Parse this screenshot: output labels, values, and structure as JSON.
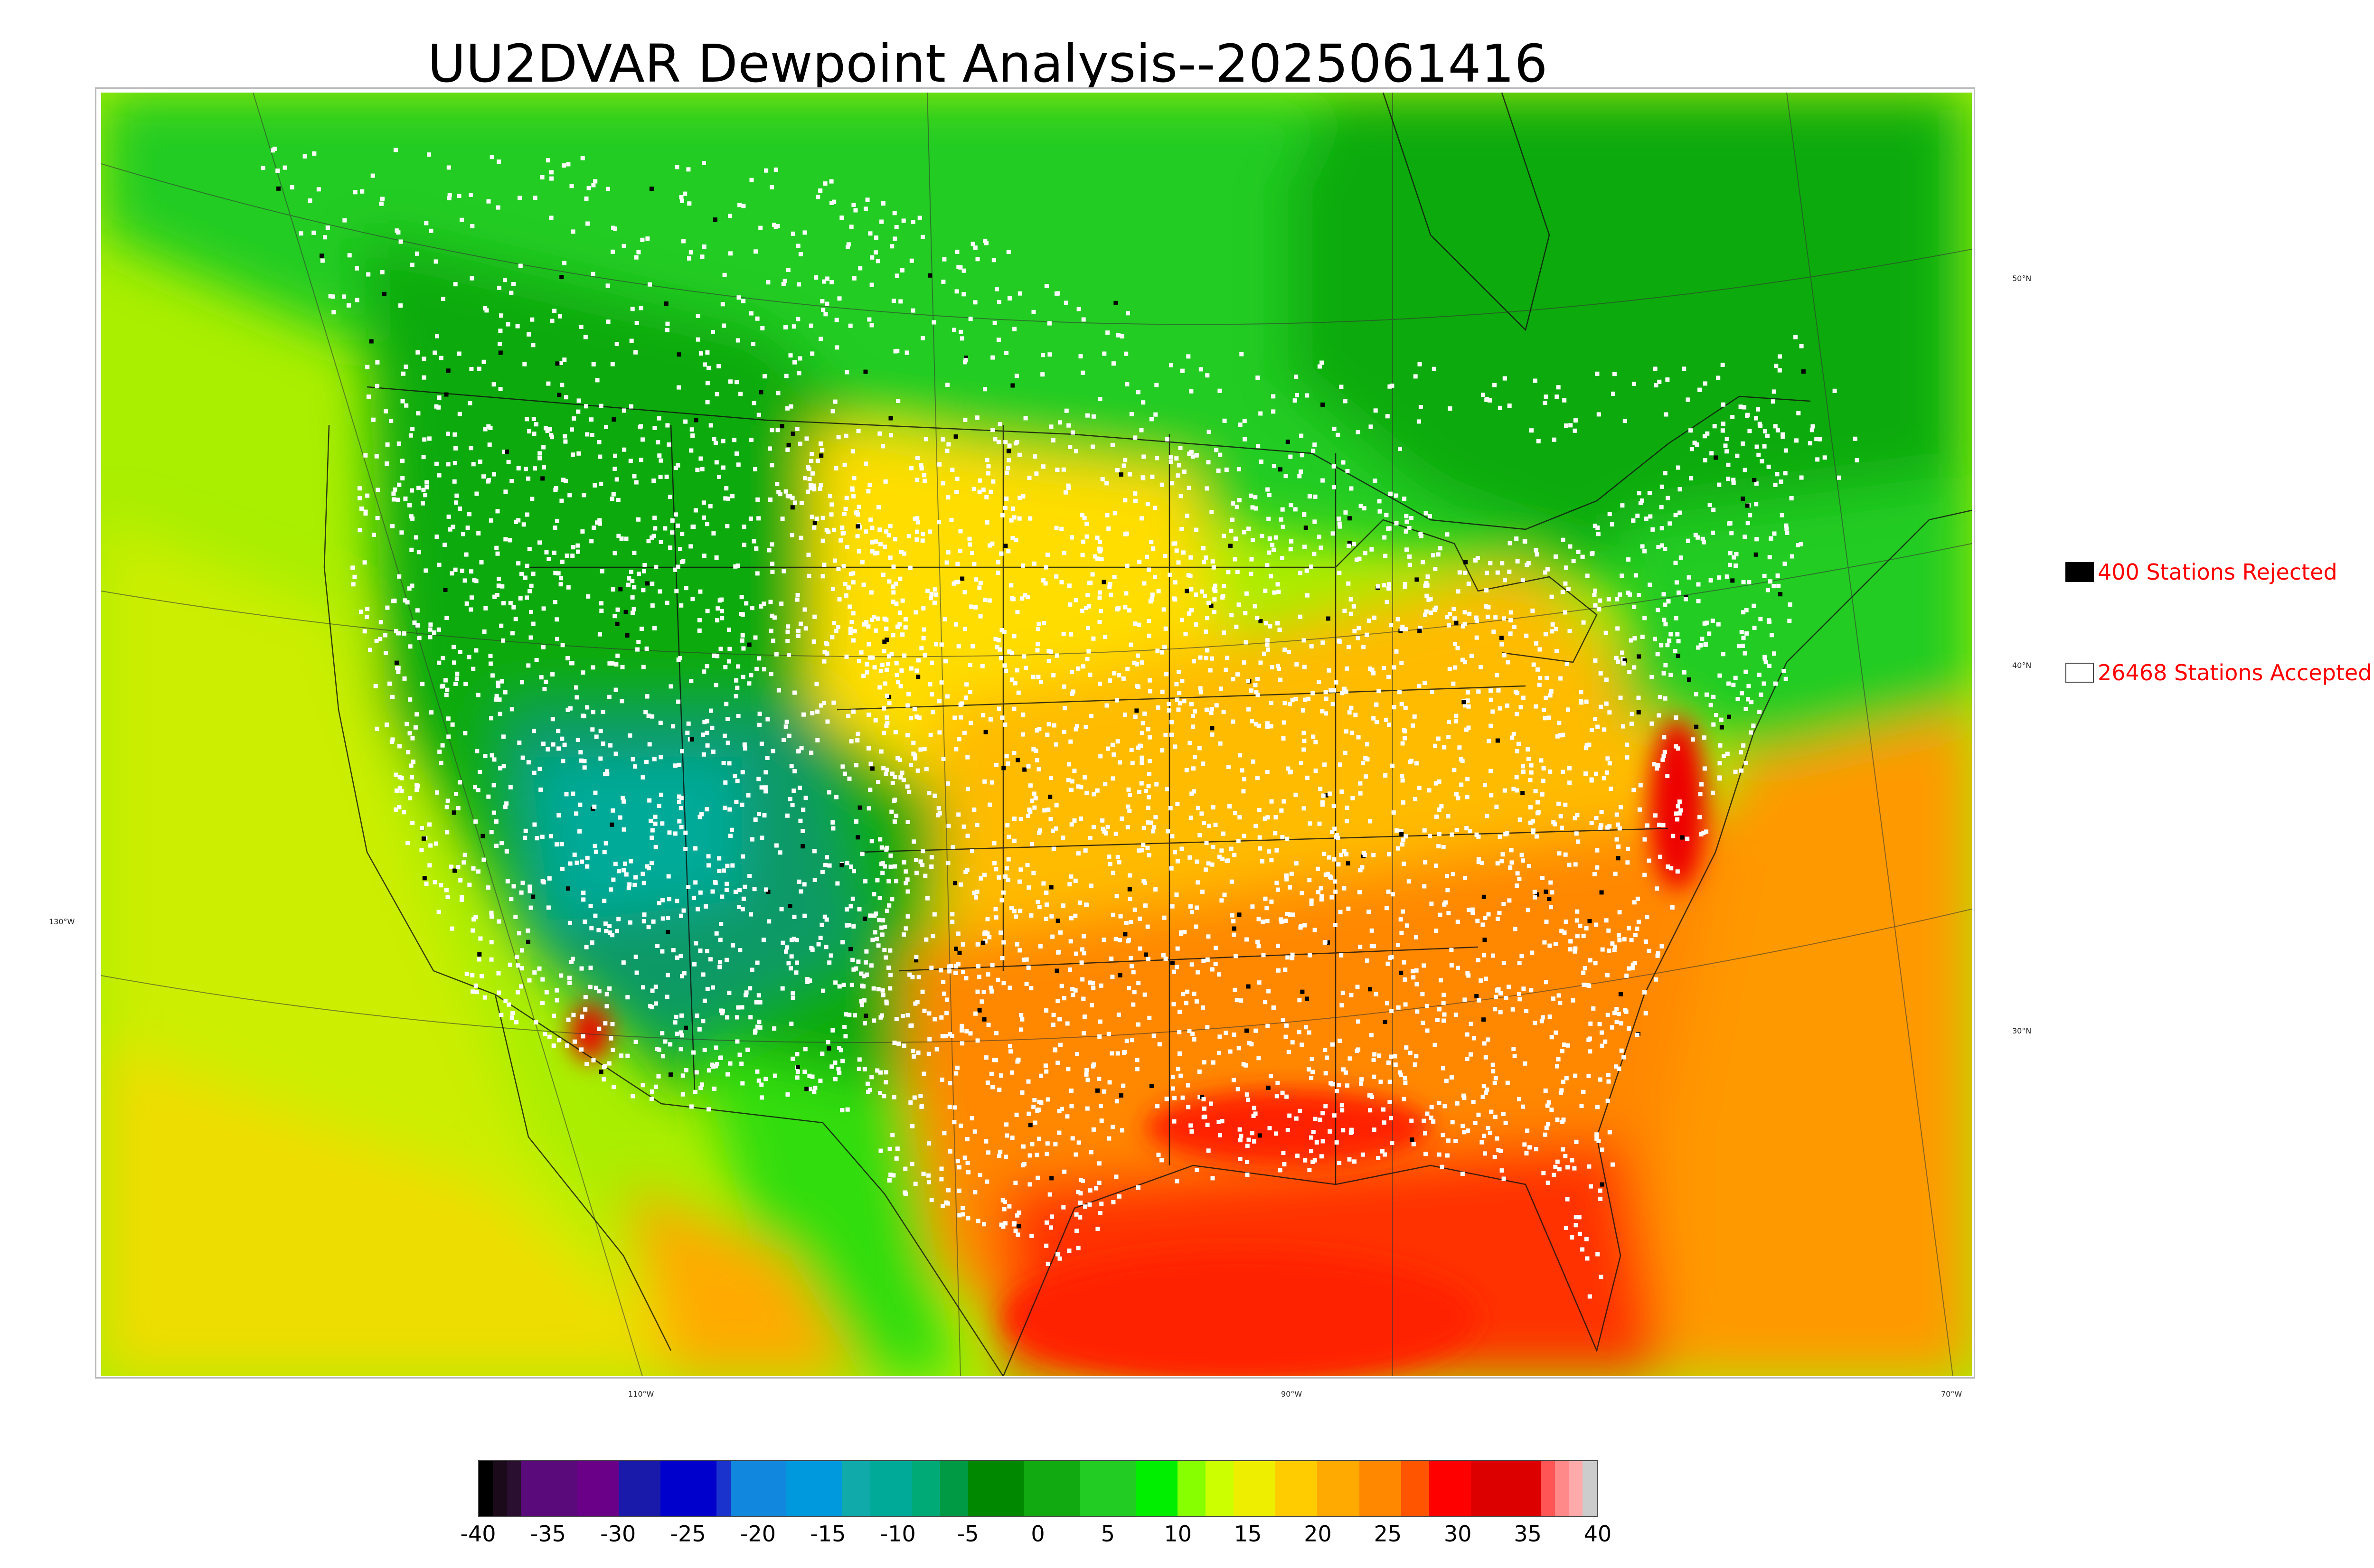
{
  "title": "UU2DVAR Dewpoint Analysis--2025061416",
  "map": {
    "projection": "Lambert conformal conic",
    "field": "Dewpoint",
    "longitude_labels": [
      "110°W",
      "90°W",
      "70°W"
    ],
    "latitude_labels": [
      "50°N",
      "40°N",
      "30°N"
    ],
    "left_longitude_label": "130°W",
    "station_colors": {
      "accepted": "#ffffff",
      "rejected": "#000000"
    }
  },
  "legend": {
    "rejected": {
      "label": "400 Stations Rejected",
      "count": 400,
      "swatch_color": "#000000"
    },
    "accepted": {
      "label": "26468 Stations Accepted",
      "count": 26468,
      "swatch_color": "#ffffff"
    }
  },
  "colorbar": {
    "min": -40,
    "max": 40,
    "tick_labels": [
      "-40",
      "-35",
      "-30",
      "-25",
      "-20",
      "-15",
      "-10",
      "-5",
      "0",
      "5",
      "10",
      "15",
      "20",
      "25",
      "30",
      "35",
      "40"
    ],
    "bins": [
      {
        "from": -40,
        "to": -39,
        "color": "#000000"
      },
      {
        "from": -39,
        "to": -38,
        "color": "#1a0a1a"
      },
      {
        "from": -38,
        "to": -37,
        "color": "#2a0f30"
      },
      {
        "from": -37,
        "to": -33,
        "color": "#5a0a7a"
      },
      {
        "from": -33,
        "to": -30,
        "color": "#6a0088"
      },
      {
        "from": -30,
        "to": -27,
        "color": "#1a1aaa"
      },
      {
        "from": -27,
        "to": -23,
        "color": "#0000cc"
      },
      {
        "from": -23,
        "to": -22,
        "color": "#1a33cc"
      },
      {
        "from": -22,
        "to": -18,
        "color": "#1188dd"
      },
      {
        "from": -18,
        "to": -14,
        "color": "#0099dd"
      },
      {
        "from": -14,
        "to": -12,
        "color": "#11aaaa"
      },
      {
        "from": -12,
        "to": -9,
        "color": "#00aa99"
      },
      {
        "from": -9,
        "to": -7,
        "color": "#00aa77"
      },
      {
        "from": -7,
        "to": -5,
        "color": "#009944"
      },
      {
        "from": -5,
        "to": -1,
        "color": "#008800"
      },
      {
        "from": -1,
        "to": 3,
        "color": "#11aa11"
      },
      {
        "from": 3,
        "to": 7,
        "color": "#22cc22"
      },
      {
        "from": 7,
        "to": 10,
        "color": "#00ee00"
      },
      {
        "from": 10,
        "to": 12,
        "color": "#88ff00"
      },
      {
        "from": 12,
        "to": 14,
        "color": "#ccff00"
      },
      {
        "from": 14,
        "to": 17,
        "color": "#eeee00"
      },
      {
        "from": 17,
        "to": 20,
        "color": "#ffcc00"
      },
      {
        "from": 20,
        "to": 23,
        "color": "#ffaa00"
      },
      {
        "from": 23,
        "to": 26,
        "color": "#ff8800"
      },
      {
        "from": 26,
        "to": 28,
        "color": "#ff5500"
      },
      {
        "from": 28,
        "to": 31,
        "color": "#ff0000"
      },
      {
        "from": 31,
        "to": 36,
        "color": "#dd0000"
      },
      {
        "from": 36,
        "to": 37,
        "color": "#ff5555"
      },
      {
        "from": 37,
        "to": 38,
        "color": "#ff8888"
      },
      {
        "from": 38,
        "to": 39,
        "color": "#ffaaaa"
      },
      {
        "from": 39,
        "to": 40,
        "color": "#cccccc"
      }
    ]
  },
  "colors": {
    "legend_text": "#ff0000",
    "ocean_pacific": "#c8e600",
    "gulf": "#ff3300",
    "atlantic": "#ff9900",
    "canada": "#22cc22",
    "west": "#119911",
    "plains": "#ffcc00",
    "southeast": "#ff7700"
  }
}
